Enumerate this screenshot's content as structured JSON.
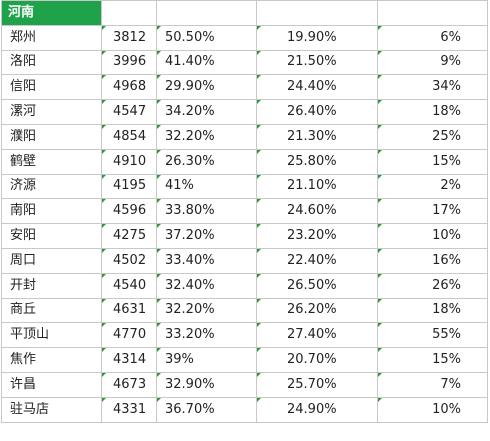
{
  "header": {
    "province": "河南"
  },
  "rows": [
    {
      "city": "郑州",
      "value": "3812",
      "pct1": "50.50%",
      "pct2": "19.90%",
      "pct3": "6%"
    },
    {
      "city": "洛阳",
      "value": "3996",
      "pct1": "41.40%",
      "pct2": "21.50%",
      "pct3": "9%"
    },
    {
      "city": "信阳",
      "value": "4968",
      "pct1": "29.90%",
      "pct2": "24.40%",
      "pct3": "34%"
    },
    {
      "city": "漯河",
      "value": "4547",
      "pct1": "34.20%",
      "pct2": "26.40%",
      "pct3": "18%"
    },
    {
      "city": "濮阳",
      "value": "4854",
      "pct1": "32.20%",
      "pct2": "21.30%",
      "pct3": "25%"
    },
    {
      "city": "鹤壁",
      "value": "4910",
      "pct1": "26.30%",
      "pct2": "25.80%",
      "pct3": "15%"
    },
    {
      "city": "济源",
      "value": "4195",
      "pct1": "41%",
      "pct2": "21.10%",
      "pct3": "2%"
    },
    {
      "city": "南阳",
      "value": "4596",
      "pct1": "33.80%",
      "pct2": "24.60%",
      "pct3": "17%"
    },
    {
      "city": "安阳",
      "value": "4275",
      "pct1": "37.20%",
      "pct2": "23.20%",
      "pct3": "10%"
    },
    {
      "city": "周口",
      "value": "4502",
      "pct1": "33.40%",
      "pct2": "22.40%",
      "pct3": "16%"
    },
    {
      "city": "开封",
      "value": "4540",
      "pct1": "32.40%",
      "pct2": "26.50%",
      "pct3": "26%"
    },
    {
      "city": "商丘",
      "value": "4631",
      "pct1": "32.20%",
      "pct2": "26.20%",
      "pct3": "18%"
    },
    {
      "city": "平顶山",
      "value": "4770",
      "pct1": "33.20%",
      "pct2": "27.40%",
      "pct3": "55%"
    },
    {
      "city": "焦作",
      "value": "4314",
      "pct1": "39%",
      "pct2": "20.70%",
      "pct3": "15%"
    },
    {
      "city": "许昌",
      "value": "4673",
      "pct1": "32.90%",
      "pct2": "25.70%",
      "pct3": "7%"
    },
    {
      "city": "驻马店",
      "value": "4331",
      "pct1": "36.70%",
      "pct2": "24.90%",
      "pct3": "10%"
    }
  ],
  "colors": {
    "header_bg": "#1fa34a",
    "header_text": "#ffffff",
    "grid": "#c8c8c8",
    "indicator": "#2a9a3c"
  }
}
